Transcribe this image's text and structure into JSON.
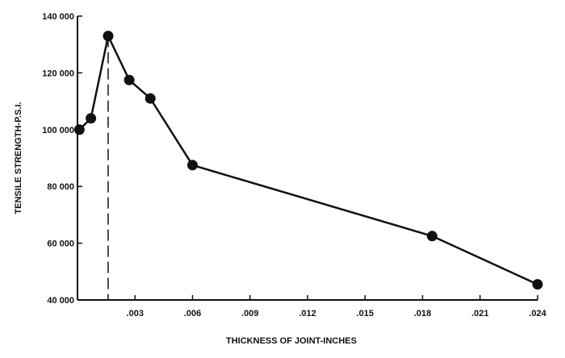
{
  "chart_data": {
    "type": "line",
    "title": "",
    "xlabel": "THICKNESS OF JOINT-INCHES",
    "ylabel": "TENSILE STRENGTH-P.S.I.",
    "xlim": [
      0,
      0.024
    ],
    "ylim": [
      40000,
      140000
    ],
    "x_ticks": [
      0.003,
      0.006,
      0.009,
      0.012,
      0.015,
      0.018,
      0.021,
      0.024
    ],
    "x_tick_labels": [
      ".003",
      ".006",
      ".009",
      ".012",
      ".015",
      ".018",
      ".021",
      ".024"
    ],
    "y_ticks": [
      40000,
      60000,
      80000,
      100000,
      120000,
      140000
    ],
    "y_tick_labels": [
      "40 000",
      "60 000",
      "80 000",
      "100 000",
      "120 000",
      "140 000"
    ],
    "grid": false,
    "series": [
      {
        "x": [
          0.0001,
          0.0007,
          0.0016,
          0.0027,
          0.0038,
          0.006,
          0.0185,
          0.024
        ],
        "y": [
          100000,
          104000,
          133000,
          117500,
          111000,
          87500,
          62500,
          45500
        ]
      }
    ],
    "reference_line": {
      "orientation": "vertical",
      "x": 0.0016,
      "style": "dashed"
    }
  }
}
